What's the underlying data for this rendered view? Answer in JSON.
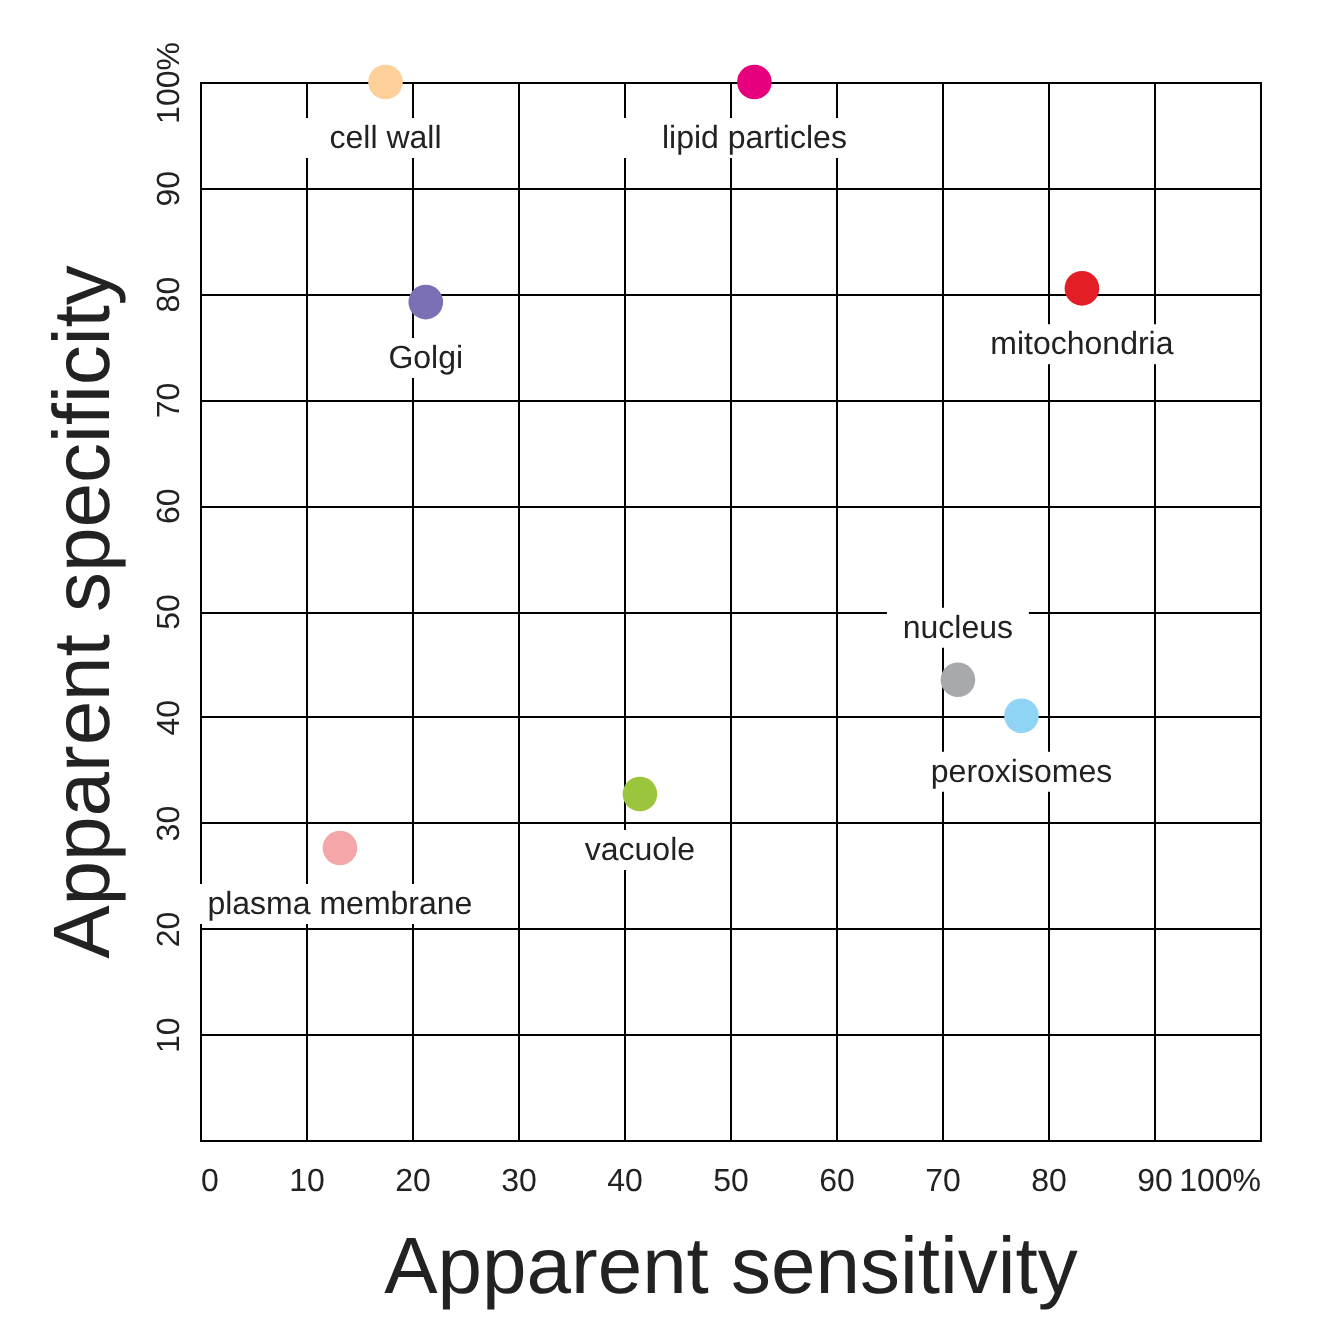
{
  "chart_data": {
    "type": "scatter",
    "xlabel": "Apparent sensitivity",
    "ylabel": "Apparent specificity",
    "x": [
      17.5,
      52.3,
      21.3,
      83.2,
      71.5,
      77.5,
      41.5,
      13.2
    ],
    "values": [
      100,
      100,
      79.2,
      80.5,
      43.5,
      40.1,
      32.7,
      27.6
    ],
    "colors": [
      "#fdd09a",
      "#e6007e",
      "#7b6fb5",
      "#e31e24",
      "#a7a9ac",
      "#8fd3f5",
      "#9bc53d",
      "#f4a7a9"
    ],
    "annotations": [
      {
        "text": "cell wall",
        "x": 17.5,
        "y": 100
      },
      {
        "text": "lipid particles",
        "x": 52.3,
        "y": 100
      },
      {
        "text": "Golgi",
        "x": 21.3,
        "y": 79.2
      },
      {
        "text": "mitochondria",
        "x": 83.2,
        "y": 80.5
      },
      {
        "text": "nucleus",
        "x": 71.5,
        "y": 43.5
      },
      {
        "text": "peroxisomes",
        "x": 77.5,
        "y": 40.1
      },
      {
        "text": "vacuole",
        "x": 41.5,
        "y": 32.7
      },
      {
        "text": "plasma membrane",
        "x": 13.2,
        "y": 27.6
      }
    ],
    "xlim": [
      0,
      100
    ],
    "ylim": [
      0,
      100
    ],
    "xticks": [
      0,
      10,
      20,
      30,
      40,
      50,
      60,
      70,
      80,
      90,
      {
        "value": 100,
        "label": "100%"
      }
    ],
    "yticks": [
      {
        "value": 0,
        "label": null
      },
      10,
      20,
      30,
      40,
      50,
      60,
      70,
      80,
      90,
      {
        "value": 100,
        "label": "100%"
      }
    ],
    "grid": true,
    "marker": "circle",
    "legend": false
  }
}
